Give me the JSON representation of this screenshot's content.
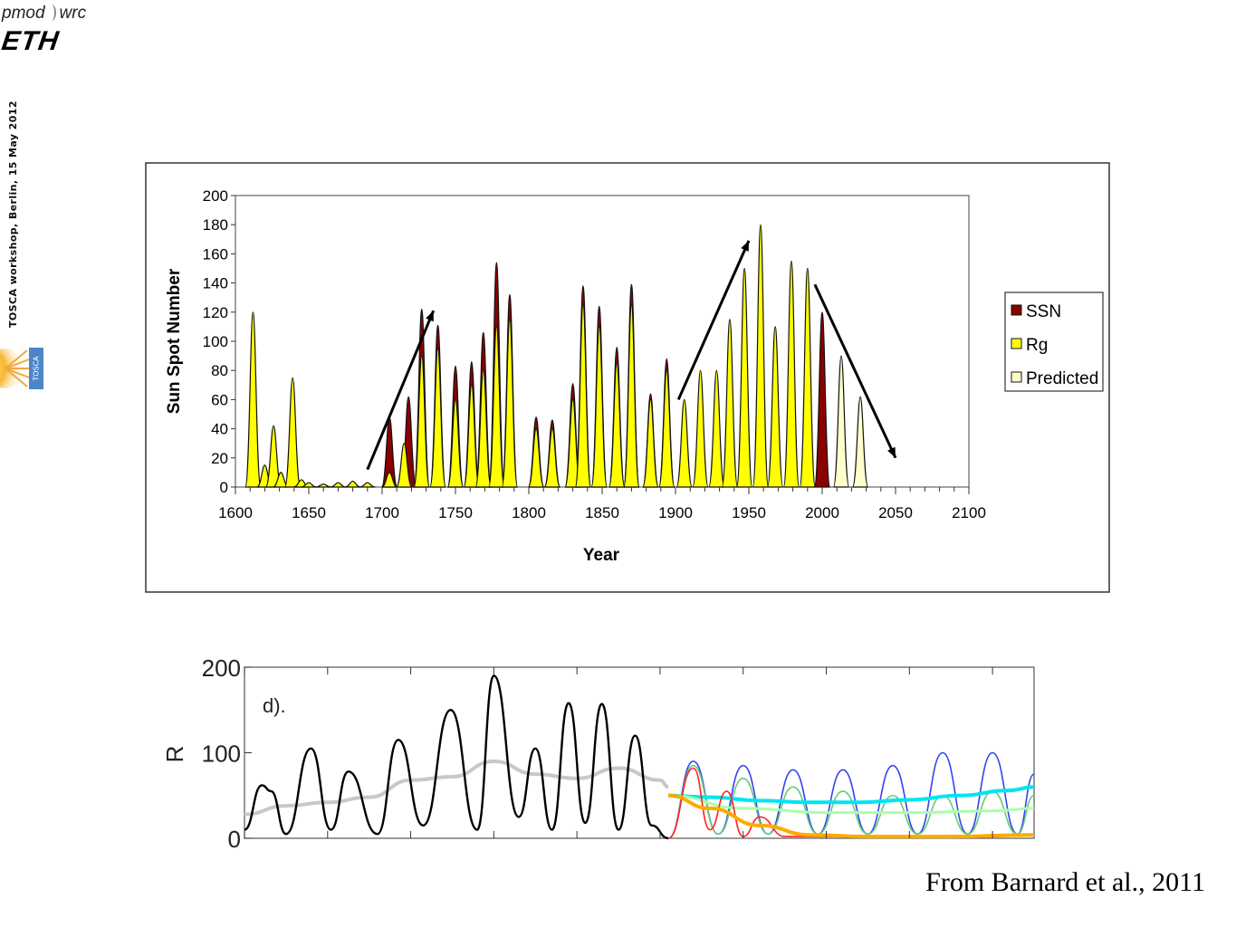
{
  "header": {
    "logo_pmod_left": "pmod",
    "logo_pmod_right": "wrc",
    "logo_eth": "ETH",
    "side_text": "TOSCA workshop, Berlin,  15 May 2012",
    "tosca_logo_text": "TOSCA"
  },
  "credit": "From Barnard et al., 2011",
  "colors": {
    "ssn": "#8B0000",
    "rg": "#FFFF00",
    "predicted": "#FFFFCC",
    "model_blue": "#3344ee",
    "model_cyan": "#00e5f0",
    "model_green": "#66cc77",
    "model_lightgreen": "#aaffaa",
    "model_red": "#ff2222",
    "model_orange": "#ffaa00",
    "history_gray": "#c8c8c8"
  },
  "chart_data": [
    {
      "type": "area",
      "title": "",
      "xlabel": "Year",
      "ylabel": "Sun Spot Number",
      "xlim": [
        1600,
        2100
      ],
      "ylim": [
        0,
        200
      ],
      "xticks": [
        1600,
        1650,
        1700,
        1750,
        1800,
        1850,
        1900,
        1950,
        2000,
        2050,
        2100
      ],
      "yticks": [
        0,
        20,
        40,
        60,
        80,
        100,
        120,
        140,
        160,
        180,
        200
      ],
      "grid": false,
      "legend_position": "right",
      "legend": [
        "SSN",
        "Rg",
        "Predicted"
      ],
      "series": [
        {
          "name": "SSN",
          "peaks": [
            [
              1705,
              48
            ],
            [
              1718,
              62
            ],
            [
              1727,
              122
            ],
            [
              1738,
              111
            ],
            [
              1750,
              83
            ],
            [
              1761,
              86
            ],
            [
              1769,
              106
            ],
            [
              1778,
              154
            ],
            [
              1787,
              132
            ],
            [
              1805,
              48
            ],
            [
              1816,
              46
            ],
            [
              1830,
              71
            ],
            [
              1837,
              138
            ],
            [
              1848,
              124
            ],
            [
              1860,
              96
            ],
            [
              1870,
              139
            ],
            [
              1883,
              64
            ],
            [
              1894,
              88
            ],
            [
              2000,
              120
            ]
          ]
        },
        {
          "name": "Rg",
          "peaks": [
            [
              1612,
              120
            ],
            [
              1620,
              15
            ],
            [
              1626,
              42
            ],
            [
              1631,
              10
            ],
            [
              1639,
              75
            ],
            [
              1645,
              5
            ],
            [
              1650,
              3
            ],
            [
              1660,
              2
            ],
            [
              1670,
              3
            ],
            [
              1680,
              4
            ],
            [
              1690,
              3
            ],
            [
              1705,
              10
            ],
            [
              1715,
              30
            ],
            [
              1727,
              90
            ],
            [
              1738,
              95
            ],
            [
              1750,
              60
            ],
            [
              1761,
              70
            ],
            [
              1769,
              80
            ],
            [
              1778,
              110
            ],
            [
              1787,
              115
            ],
            [
              1805,
              40
            ],
            [
              1816,
              40
            ],
            [
              1830,
              60
            ],
            [
              1837,
              125
            ],
            [
              1848,
              110
            ],
            [
              1860,
              85
            ],
            [
              1870,
              125
            ],
            [
              1883,
              60
            ],
            [
              1894,
              80
            ],
            [
              1906,
              60
            ],
            [
              1917,
              80
            ],
            [
              1928,
              80
            ],
            [
              1937,
              115
            ],
            [
              1947,
              150
            ],
            [
              1958,
              180
            ],
            [
              1968,
              110
            ],
            [
              1979,
              155
            ],
            [
              1990,
              150
            ]
          ]
        },
        {
          "name": "Predicted",
          "peaks": [
            [
              2013,
              90
            ],
            [
              2026,
              62
            ]
          ]
        }
      ],
      "trend_arrows": [
        {
          "from": [
            1690,
            12
          ],
          "to": [
            1735,
            121
          ]
        },
        {
          "from": [
            1902,
            60
          ],
          "to": [
            1950,
            169
          ]
        },
        {
          "from": [
            1995,
            139
          ],
          "to": [
            2050,
            20
          ]
        }
      ]
    },
    {
      "type": "line",
      "panel_label": "d).",
      "ylabel": "R",
      "ylim": [
        0,
        200
      ],
      "yticks": [
        0,
        100,
        200
      ],
      "grid": false,
      "x_index_range": [
        0,
        950
      ],
      "xticks": [
        0,
        100,
        200,
        300,
        400,
        500,
        600,
        700,
        800,
        900
      ],
      "series": [
        {
          "role": "observed",
          "color_key": "history_gray",
          "x": [
            0,
            50,
            100,
            150,
            200,
            250,
            300,
            350,
            400,
            450,
            500,
            510
          ],
          "values": [
            28,
            38,
            42,
            48,
            68,
            72,
            90,
            75,
            70,
            82,
            68,
            60
          ]
        },
        {
          "role": "observed",
          "color_key": "black",
          "x": [
            0,
            21,
            32,
            50,
            80,
            104,
            125,
            160,
            185,
            215,
            248,
            280,
            300,
            330,
            350,
            370,
            390,
            410,
            430,
            450,
            470,
            490,
            510
          ],
          "values": [
            10,
            62,
            55,
            5,
            105,
            10,
            78,
            5,
            115,
            15,
            150,
            10,
            190,
            25,
            105,
            10,
            158,
            18,
            157,
            10,
            120,
            15,
            0
          ]
        },
        {
          "role": "projection",
          "color_key": "model_blue",
          "x": [
            510,
            540,
            570,
            600,
            630,
            660,
            690,
            720,
            750,
            780,
            810,
            840,
            870,
            900,
            930,
            950
          ],
          "values": [
            0,
            90,
            5,
            85,
            5,
            80,
            5,
            80,
            5,
            85,
            5,
            100,
            5,
            100,
            5,
            75
          ]
        },
        {
          "role": "projection",
          "color_key": "model_green",
          "x": [
            510,
            540,
            570,
            600,
            630,
            660,
            690,
            720,
            750,
            780,
            810,
            840,
            870,
            900,
            930,
            950
          ],
          "values": [
            0,
            85,
            5,
            70,
            5,
            60,
            5,
            55,
            5,
            50,
            5,
            50,
            5,
            55,
            5,
            50
          ]
        },
        {
          "role": "projection",
          "color_key": "model_cyan",
          "x": [
            510,
            560,
            620,
            680,
            740,
            800,
            860,
            920,
            950
          ],
          "values": [
            50,
            48,
            44,
            42,
            42,
            45,
            50,
            56,
            60
          ]
        },
        {
          "role": "projection",
          "color_key": "model_lightgreen",
          "x": [
            510,
            600,
            700,
            800,
            900,
            950
          ],
          "values": [
            50,
            35,
            30,
            30,
            32,
            35
          ]
        },
        {
          "role": "projection",
          "color_key": "model_red",
          "x": [
            510,
            540,
            560,
            580,
            600,
            620,
            650,
            700,
            800,
            900,
            950
          ],
          "values": [
            0,
            82,
            10,
            55,
            2,
            25,
            2,
            2,
            2,
            2,
            5
          ]
        },
        {
          "role": "projection",
          "color_key": "model_orange",
          "x": [
            510,
            560,
            620,
            680,
            750,
            850,
            950
          ],
          "values": [
            50,
            35,
            15,
            4,
            2,
            2,
            4
          ]
        }
      ]
    }
  ]
}
